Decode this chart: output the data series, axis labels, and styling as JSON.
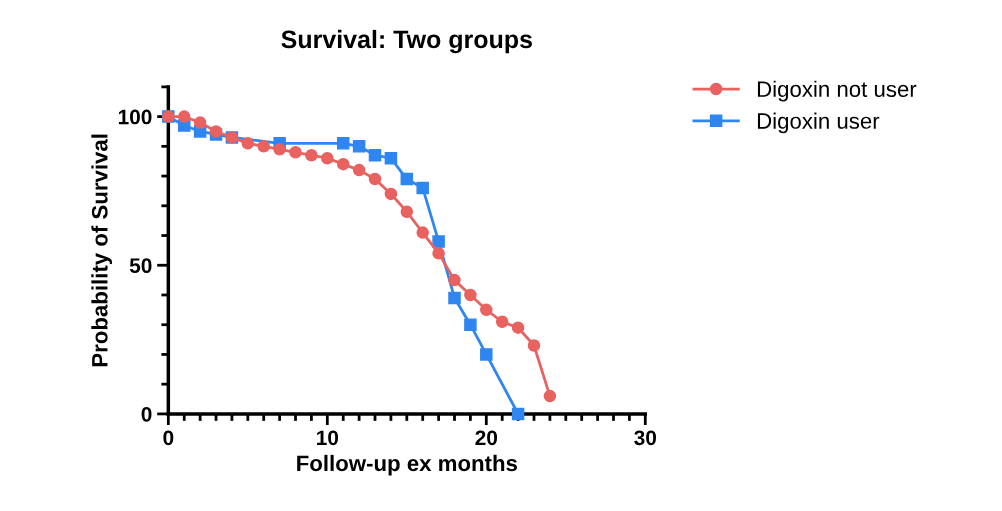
{
  "chart_data": {
    "type": "line",
    "title": "Survival: Two groups",
    "xlabel": "Follow-up ex months",
    "ylabel": "Probability of Survival",
    "xlim": [
      0,
      30
    ],
    "xticks": [
      0,
      10,
      20,
      30
    ],
    "ylim": [
      0,
      110
    ],
    "yticks": [
      0,
      50,
      100
    ],
    "grid": false,
    "legend": "top right",
    "series": [
      {
        "name": "Digoxin not user",
        "color": "#e8625f",
        "marker": "circle",
        "x": [
          0,
          1,
          2,
          3,
          4,
          5,
          6,
          7,
          8,
          9,
          10,
          11,
          12,
          13,
          14,
          15,
          16,
          17,
          18,
          19,
          20,
          21,
          22,
          23,
          24
        ],
        "values": [
          100,
          100,
          98,
          95,
          93,
          91,
          90,
          89,
          88,
          87,
          86,
          84,
          82,
          79,
          74,
          68,
          61,
          54,
          45,
          40,
          35,
          31,
          29,
          23,
          6
        ]
      },
      {
        "name": "Digoxin user",
        "color": "#2f86f0",
        "marker": "square",
        "x": [
          0,
          1,
          2,
          3,
          4,
          7,
          11,
          12,
          13,
          14,
          15,
          16,
          17,
          18,
          19,
          20,
          22
        ],
        "values": [
          100,
          97,
          95,
          94,
          93,
          91,
          91,
          90,
          87,
          86,
          79,
          76,
          58,
          39,
          30,
          20,
          0
        ]
      }
    ]
  }
}
